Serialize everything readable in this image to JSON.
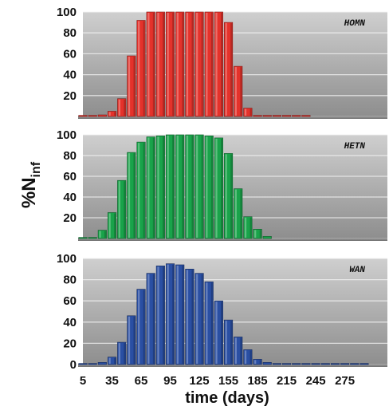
{
  "chart_data": {
    "type": "bar",
    "xlabel": "time (days)",
    "ylabel": {
      "main": "%N",
      "subscript": "inf"
    },
    "x_tick_labels": [
      "5",
      "35",
      "65",
      "95",
      "125",
      "155",
      "185",
      "215",
      "245",
      "275"
    ],
    "ylim": [
      0,
      100
    ],
    "bar_spacing_days": 10,
    "panels": [
      {
        "label": "HOMN",
        "color": "#e4322b",
        "y_ticks": [
          "20",
          "40",
          "60",
          "80",
          "100"
        ],
        "x": [
          5,
          15,
          25,
          35,
          45,
          55,
          65,
          75,
          85,
          95,
          105,
          115,
          125,
          135,
          145,
          155,
          165,
          175,
          185,
          195,
          205,
          215,
          225,
          235
        ],
        "values": [
          0.5,
          0.5,
          1.5,
          5,
          17,
          58,
          92,
          100,
          100,
          100,
          100,
          100,
          100,
          100,
          100,
          90,
          48,
          8,
          1,
          0.5,
          0.5,
          0.5,
          0.5,
          0.5
        ]
      },
      {
        "label": "HETN",
        "color": "#19a34a",
        "y_ticks": [
          "20",
          "40",
          "60",
          "80",
          "100"
        ],
        "x": [
          5,
          15,
          25,
          35,
          45,
          55,
          65,
          75,
          85,
          95,
          105,
          115,
          125,
          135,
          145,
          155,
          165,
          175,
          185,
          195
        ],
        "values": [
          1,
          1,
          8,
          25,
          56,
          83,
          93,
          98,
          99,
          100,
          100,
          100,
          100,
          99,
          97,
          82,
          48,
          21,
          9,
          2
        ]
      },
      {
        "label": "WAN",
        "color": "#2a4fa3",
        "y_ticks": [
          "0",
          "20",
          "40",
          "60",
          "80",
          "100"
        ],
        "x": [
          5,
          15,
          25,
          35,
          45,
          55,
          65,
          75,
          85,
          95,
          105,
          115,
          125,
          135,
          145,
          155,
          165,
          175,
          185,
          195,
          205,
          215,
          225,
          235,
          245,
          255,
          265,
          275,
          285,
          295
        ],
        "values": [
          0.5,
          1,
          2,
          7,
          21,
          46,
          71,
          86,
          93,
          95,
          94,
          90,
          86,
          78,
          60,
          42,
          26,
          14,
          5,
          2,
          1,
          0.5,
          0.5,
          0.5,
          0.5,
          0.5,
          0.5,
          0.5,
          0.5,
          0.5
        ]
      }
    ]
  }
}
